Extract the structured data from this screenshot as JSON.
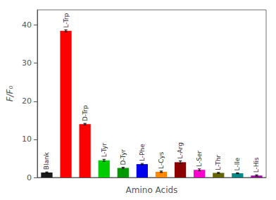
{
  "chart_data": {
    "type": "bar",
    "categories": [
      "Blank",
      "L-Trp",
      "D-Trp",
      "L-Tyr",
      "D-Tyr",
      "L-Phe",
      "L-Cys",
      "L-Arg",
      "L-Ser",
      "L-Thr",
      "L-Ile",
      "L-His"
    ],
    "values": [
      1.3,
      38.5,
      14.0,
      4.5,
      2.5,
      3.5,
      1.5,
      4.0,
      2.0,
      1.2,
      1.1,
      0.5
    ],
    "errors": [
      0.15,
      0.25,
      0.2,
      0.25,
      0.18,
      0.18,
      0.18,
      0.35,
      0.25,
      0.12,
      0.12,
      0.18
    ],
    "colors": [
      "#1a1a1a",
      "#ff0000",
      "#ff0000",
      "#00cc00",
      "#009900",
      "#0000ee",
      "#ff8800",
      "#8b0000",
      "#ff00cc",
      "#666600",
      "#008888",
      "#aa00aa"
    ],
    "xlabel": "Amino Acids",
    "ylabel": "F/F₀",
    "ylim": [
      0,
      44
    ],
    "yticks": [
      0,
      10,
      20,
      30,
      40
    ],
    "grid": false,
    "tick_labels": "y"
  }
}
